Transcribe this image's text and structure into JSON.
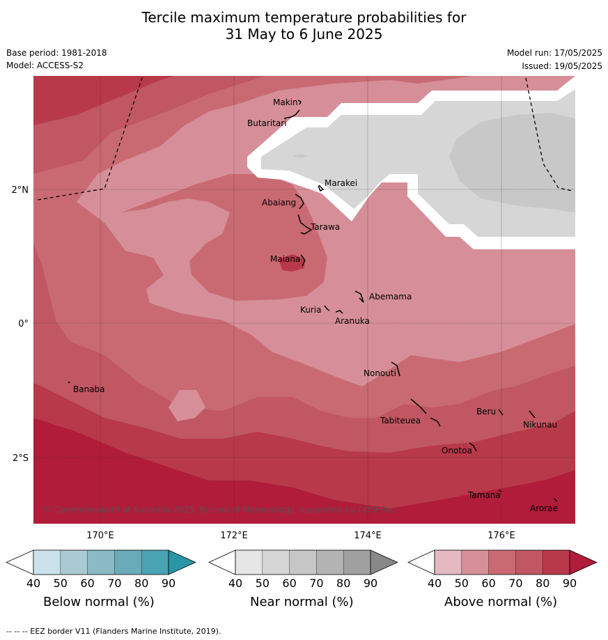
{
  "title": {
    "line1": "Tercile maximum temperature probabilities for",
    "line2": "31 May to 6 June 2025"
  },
  "meta": {
    "base_period": "Base period: 1981-2018",
    "model": "Model: ACCESS-S2",
    "model_run": "Model run: 17/05/2025",
    "issued": "Issued: 19/05/2025"
  },
  "map": {
    "lat_labels": [
      "2°N",
      "0°",
      "2°S"
    ],
    "lon_labels": [
      "170°E",
      "172°E",
      "174°E",
      "176°E"
    ],
    "copyright": "© Commonwealth of Australia 2025, Bureau of Meteorology, supported by COSPPac",
    "islands": {
      "makin": "Makin",
      "butaritari": "Butaritari",
      "marakei": "Marakei",
      "abaiang": "Abaiang",
      "tarawa": "Tarawa",
      "maiana": "Maiana",
      "abemama": "Abemama",
      "kuria": "Kuria",
      "aranuka": "Aranuka",
      "nonouti": "Nonouti",
      "banaba": "Banaba",
      "beru": "Beru",
      "nikunau": "Nikunau",
      "tabiteuea": "Tabiteuea",
      "onotoa": "Onotoa",
      "tamana": "Tamana",
      "arorae": "Arorae"
    }
  },
  "colorbars": [
    {
      "label": "Below normal (%)",
      "ticks": [
        "40",
        "50",
        "60",
        "70",
        "80",
        "90"
      ],
      "colors": [
        "#ffffff",
        "#cbe2ea",
        "#a9cad3",
        "#8bb9c5",
        "#6aabb9",
        "#49a3b2",
        "#2b95a6"
      ]
    },
    {
      "label": "Near normal (%)",
      "ticks": [
        "40",
        "50",
        "60",
        "70",
        "80",
        "90"
      ],
      "colors": [
        "#ffffff",
        "#e6e6e6",
        "#d6d6d6",
        "#c6c6c6",
        "#b3b3b3",
        "#a0a0a0",
        "#888888"
      ]
    },
    {
      "label": "Above normal (%)",
      "ticks": [
        "40",
        "50",
        "60",
        "70",
        "80",
        "90"
      ],
      "colors": [
        "#ffffff",
        "#e4b9c1",
        "#d68f98",
        "#c96a72",
        "#c05762",
        "#b8394a",
        "#b01c3a"
      ]
    }
  ],
  "footer": "--  --  -- EEZ border V11 (Flanders Marine Institute, 2019)."
}
